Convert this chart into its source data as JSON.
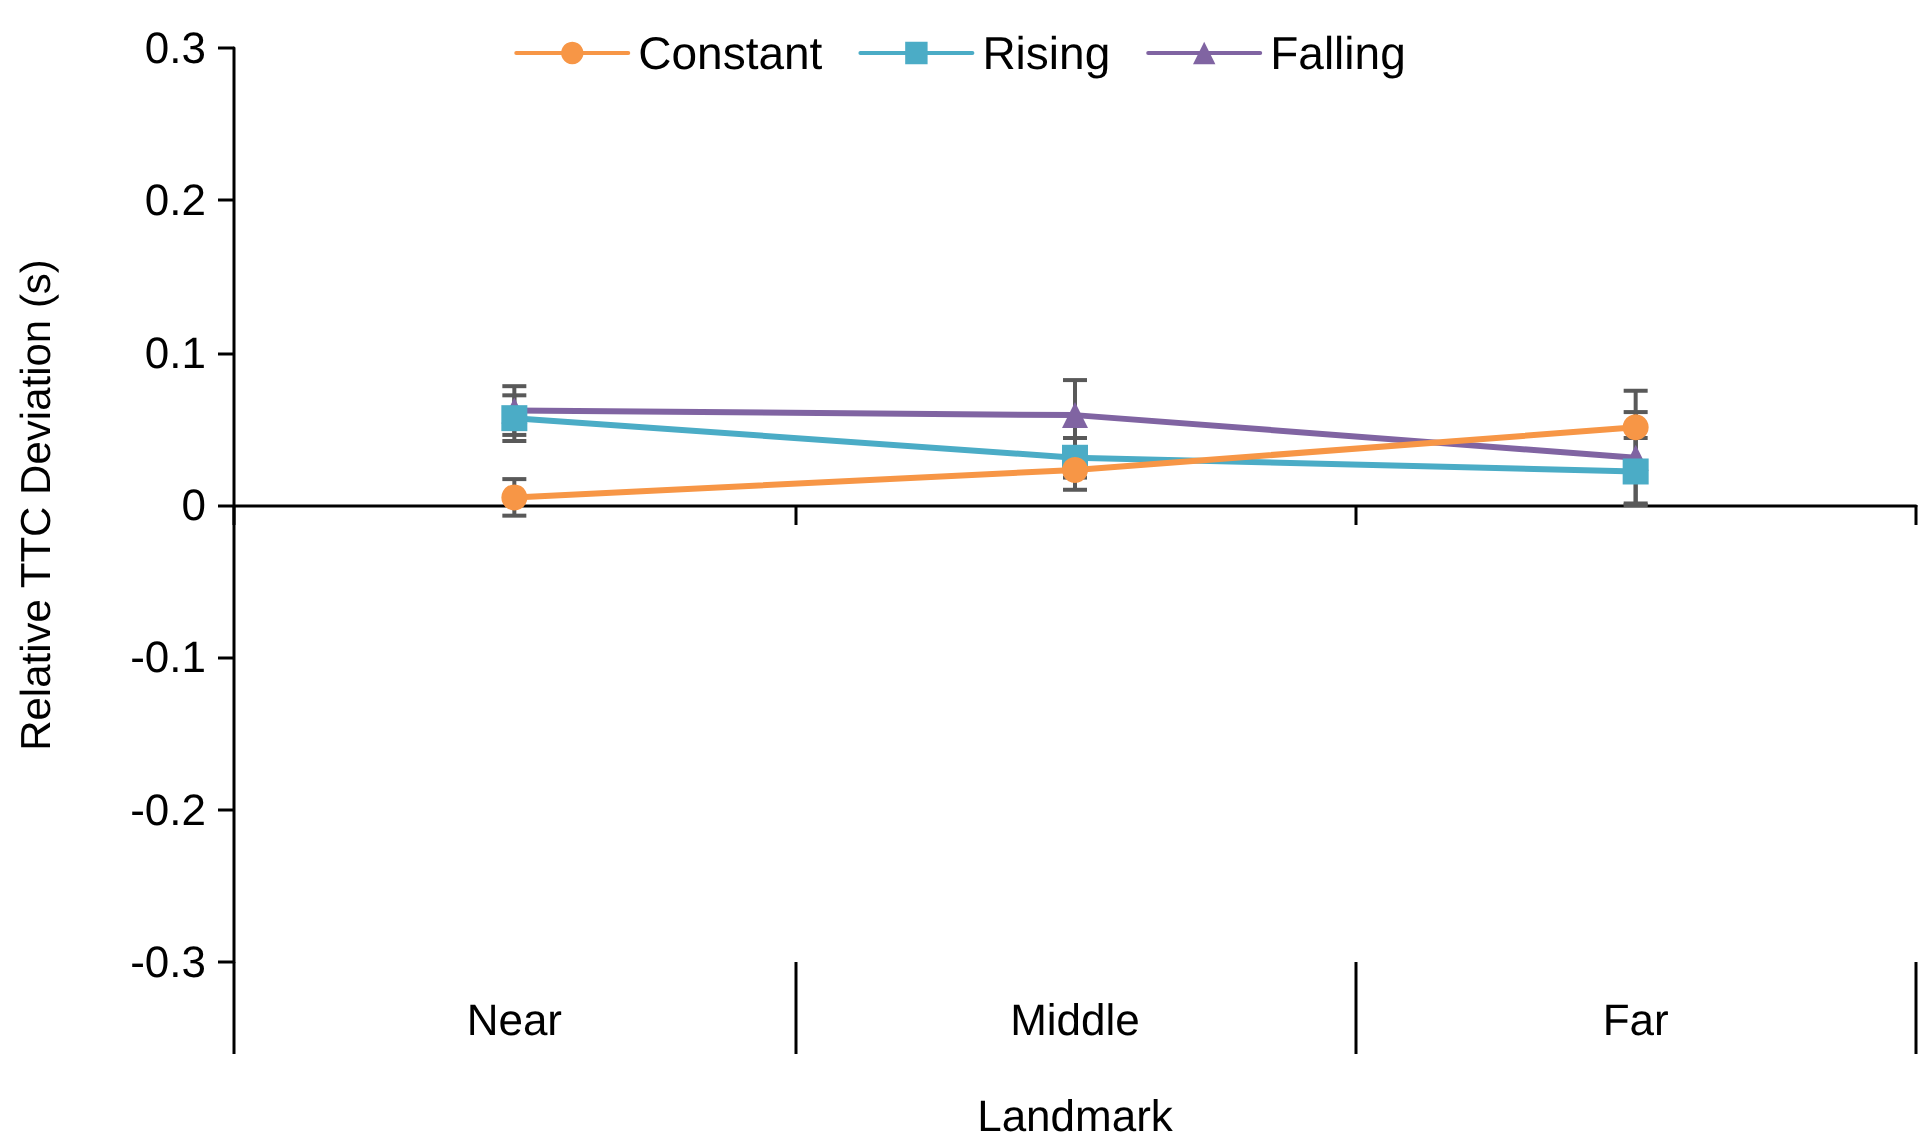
{
  "chart_data": {
    "type": "line",
    "xlabel": "Landmark",
    "ylabel": "Relative TTC Deviation (s)",
    "categories": [
      "Near",
      "Middle",
      "Far"
    ],
    "series": [
      {
        "name": "Constant",
        "color": "#f79646",
        "marker": "circle",
        "values": [
          0.005,
          0.023,
          0.051
        ],
        "errors": [
          0.012,
          0.013,
          0.024
        ]
      },
      {
        "name": "Rising",
        "color": "#4bacc6",
        "marker": "square",
        "values": [
          0.057,
          0.031,
          0.022
        ],
        "errors": [
          0.015,
          0.013,
          0.022
        ]
      },
      {
        "name": "Falling",
        "color": "#8064a2",
        "marker": "triangle",
        "values": [
          0.062,
          0.059,
          0.031
        ],
        "errors": [
          0.016,
          0.023,
          0.03
        ]
      }
    ],
    "ylim": [
      -0.3,
      0.3
    ],
    "yticks": [
      -0.3,
      -0.2,
      -0.1,
      0,
      0.1,
      0.2,
      0.3
    ],
    "legend": "top"
  }
}
